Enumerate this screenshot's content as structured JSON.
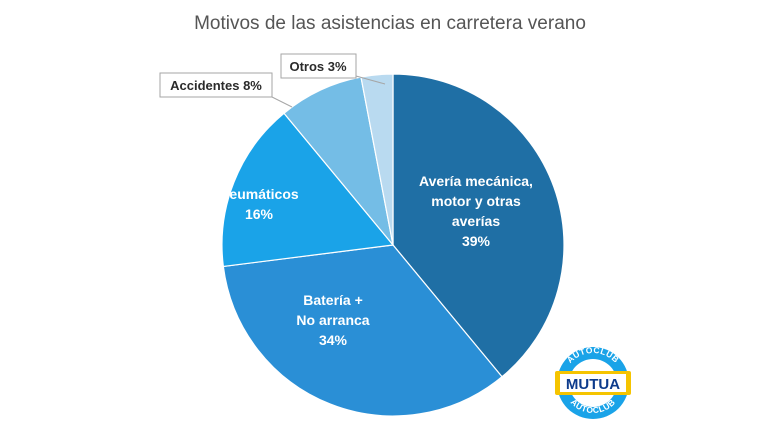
{
  "chart_data": {
    "type": "pie",
    "title": "Motivos de las asistencias en carretera verano",
    "slices": [
      {
        "label_lines": [
          "Avería mecánica,",
          "motor y otras",
          "averías"
        ],
        "pct_label": "39%",
        "value": 39,
        "color": "#1f6fa5"
      },
      {
        "label_lines": [
          "Batería +",
          "No arranca"
        ],
        "pct_label": "34%",
        "value": 34,
        "color": "#2a8fd6"
      },
      {
        "label_lines": [
          "Neumáticos"
        ],
        "pct_label": "16%",
        "value": 16,
        "color": "#1aa3e8"
      },
      {
        "label_lines": [
          "Accidentes 8%"
        ],
        "pct_label": "",
        "value": 8,
        "color": "#74bde6"
      },
      {
        "label_lines": [
          "Otros 3%"
        ],
        "pct_label": "",
        "value": 3,
        "color": "#b9daf0"
      }
    ],
    "legend": "none"
  },
  "logo": {
    "top_text": "AUTOCLUB",
    "main_text": "MUTUA",
    "bottom_text": "AUTOCLUB",
    "colors": {
      "ring": "#1aa3e8",
      "band": "#f5c400",
      "text": "#0d3b8c"
    }
  }
}
